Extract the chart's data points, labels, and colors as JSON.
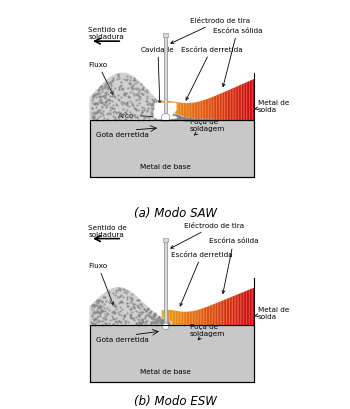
{
  "bg_color": "#ffffff",
  "base_metal_color": "#c8c8c8",
  "flux_fill_color": "#c8c8c8",
  "flux_dot_color": "#888888",
  "weld_orange": "#f0a040",
  "weld_red": "#cc2200",
  "electrode_color": "#d8d8d8",
  "electrode_edge": "#999999",
  "title_a": "(a) Modo SAW",
  "title_b": "(b) Modo ESW",
  "labels": {
    "electrodo": "Eléctrodo de tira",
    "cavidade": "Cavidade",
    "escoria_derretida": "Escória derretida",
    "escoria_solida": "Escória sólida",
    "metal_solda": "Metal de\nsolda",
    "sentido": "Sentido de\nsoldadura",
    "fluxo": "Fluxo",
    "arco": "Arco",
    "gota": "Gota derretida",
    "poca": "Poça de\nsoldagem",
    "metal_base": "Metal de base"
  }
}
